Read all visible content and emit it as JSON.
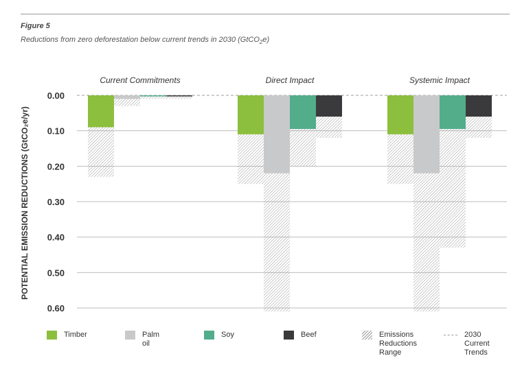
{
  "figure": {
    "label": "Figure 5",
    "title_main": "Reductions from zero deforestation below current trends in 2030 (GtCO",
    "title_sub": "2",
    "title_end": "e)"
  },
  "colors": {
    "timber": "#8dbf3e",
    "palm_oil": "#c8c9cb",
    "soy": "#53ad8b",
    "beef": "#3a3a3c",
    "hatch": "#9a9a9a",
    "gridline": "#bdbdbd",
    "trend_line": "#9e9e9e"
  },
  "chart_data": {
    "type": "bar",
    "ylabel": "POTENTIAL EMISSION REDUCTIONS (GtCO₂e/yr)",
    "ylim": [
      0,
      0.6
    ],
    "y_inverted": true,
    "y_ticks": [
      "0.00",
      "0.10",
      "0.20",
      "0.30",
      "0.40",
      "0.50",
      "0.60"
    ],
    "grid": true,
    "legend_position": "bottom",
    "groups": [
      "Current Commitments",
      "Direct Impact",
      "Systemic Impact"
    ],
    "series": [
      {
        "name": "Timber",
        "values": [
          0.09,
          0.11,
          0.11
        ],
        "range_end": [
          0.23,
          0.25,
          0.25
        ]
      },
      {
        "name": "Palm oil",
        "values": [
          0.01,
          0.22,
          0.22
        ],
        "range_end": [
          0.03,
          0.61,
          0.61
        ]
      },
      {
        "name": "Soy",
        "values": [
          0.003,
          0.095,
          0.095
        ],
        "range_end": [
          0.01,
          0.2,
          0.43
        ]
      },
      {
        "name": "Beef",
        "values": [
          0.003,
          0.06,
          0.06
        ],
        "range_end": [
          0.01,
          0.12,
          0.12
        ]
      }
    ],
    "reference_line": {
      "name": "2030 Current Trends",
      "value": 0
    }
  },
  "legend": {
    "timber": "Timber",
    "palm_oil": "Palm oil",
    "soy": "Soy",
    "beef": "Beef",
    "range": "Emissions\nReductions\nRange",
    "trends": "2030\nCurrent\nTrends"
  }
}
